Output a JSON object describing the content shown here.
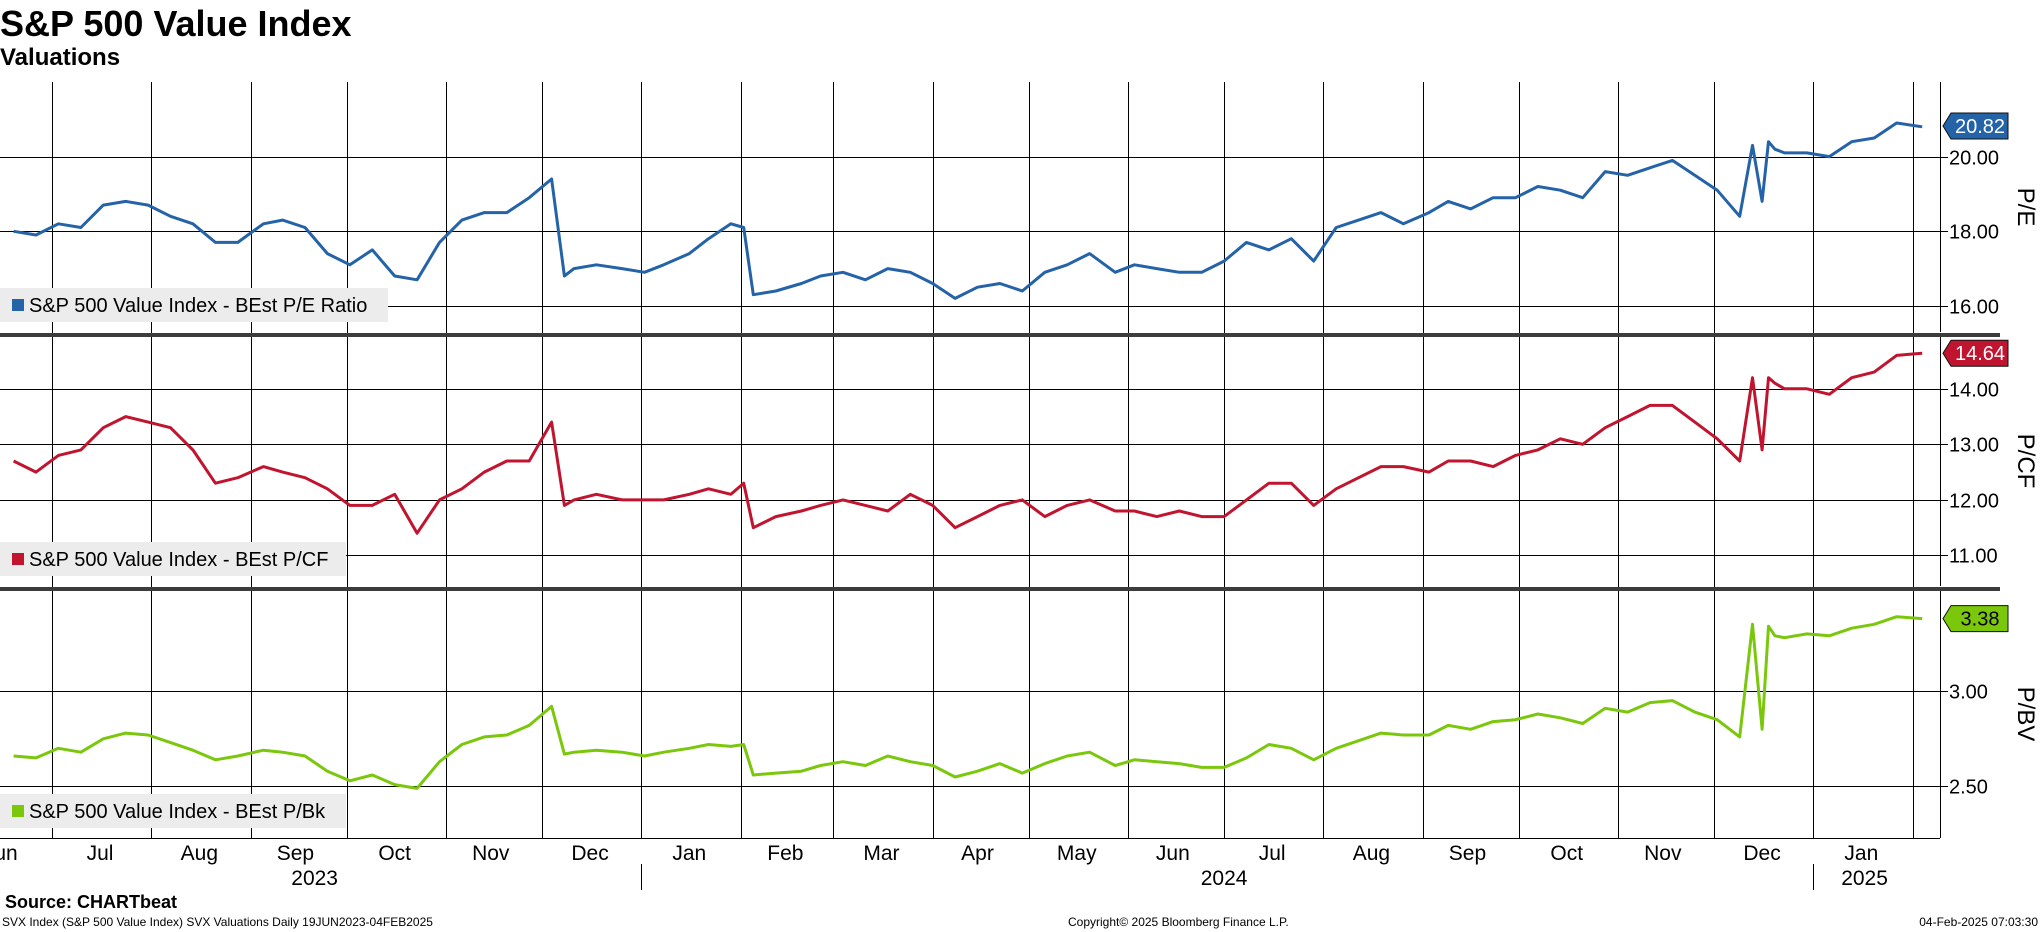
{
  "header": {
    "title": "S&P 500 Value Index",
    "subtitle": "Valuations"
  },
  "footer": {
    "source": "Source: CHARTbeat",
    "description": "SVX Index (S&P 500 Value Index) SVX Valuations  Daily 19JUN2023-04FEB2025",
    "copyright": "Copyright© 2025 Bloomberg Finance L.P.",
    "timestamp": "04-Feb-2025 07:03:30"
  },
  "colors": {
    "pe": "#2463a8",
    "pcf": "#c0142f",
    "pbv": "#7ac70c",
    "grid": "#000000",
    "panel_divider": "#3c3c3c"
  },
  "chart_data": [
    {
      "type": "line",
      "ylabel": "P/E",
      "ylim": [
        15.3,
        22.0
      ],
      "yticks": [
        "16.00",
        "18.00",
        "20.00"
      ],
      "last_value_label": "20.82",
      "legend": "S&P 500 Value Index - BEst P/E Ratio",
      "legend_position": "bottom-left",
      "series": [
        {
          "name": "S&P 500 Value Index - BEst P/E Ratio",
          "x": [
            "2023-06-19",
            "2023-06-26",
            "2023-07-03",
            "2023-07-10",
            "2023-07-17",
            "2023-07-24",
            "2023-07-31",
            "2023-08-07",
            "2023-08-14",
            "2023-08-21",
            "2023-08-28",
            "2023-09-05",
            "2023-09-11",
            "2023-09-18",
            "2023-09-25",
            "2023-10-02",
            "2023-10-09",
            "2023-10-16",
            "2023-10-23",
            "2023-10-30",
            "2023-11-06",
            "2023-11-13",
            "2023-11-20",
            "2023-11-27",
            "2023-12-04",
            "2023-12-08",
            "2023-12-11",
            "2023-12-18",
            "2023-12-26",
            "2024-01-02",
            "2024-01-08",
            "2024-01-16",
            "2024-01-22",
            "2024-01-29",
            "2024-02-02",
            "2024-02-05",
            "2024-02-12",
            "2024-02-20",
            "2024-02-26",
            "2024-03-04",
            "2024-03-11",
            "2024-03-18",
            "2024-03-25",
            "2024-04-01",
            "2024-04-08",
            "2024-04-15",
            "2024-04-22",
            "2024-04-29",
            "2024-05-06",
            "2024-05-13",
            "2024-05-20",
            "2024-05-28",
            "2024-06-03",
            "2024-06-10",
            "2024-06-17",
            "2024-06-24",
            "2024-07-01",
            "2024-07-08",
            "2024-07-15",
            "2024-07-22",
            "2024-07-29",
            "2024-08-05",
            "2024-08-12",
            "2024-08-19",
            "2024-08-26",
            "2024-09-03",
            "2024-09-09",
            "2024-09-16",
            "2024-09-23",
            "2024-09-30",
            "2024-10-07",
            "2024-10-14",
            "2024-10-21",
            "2024-10-28",
            "2024-11-04",
            "2024-11-11",
            "2024-11-18",
            "2024-11-25",
            "2024-12-02",
            "2024-12-09",
            "2024-12-13",
            "2024-12-16",
            "2024-12-18",
            "2024-12-20",
            "2024-12-23",
            "2024-12-30",
            "2025-01-06",
            "2025-01-13",
            "2025-01-20",
            "2025-01-27",
            "2025-02-04"
          ],
          "values": [
            18.0,
            17.9,
            18.2,
            18.1,
            18.7,
            18.8,
            18.7,
            18.4,
            18.2,
            17.7,
            17.7,
            18.2,
            18.3,
            18.1,
            17.4,
            17.1,
            17.5,
            16.8,
            16.7,
            17.7,
            18.3,
            18.5,
            18.5,
            18.9,
            19.4,
            16.8,
            17.0,
            17.1,
            17.0,
            16.9,
            17.1,
            17.4,
            17.8,
            18.2,
            18.1,
            16.3,
            16.4,
            16.6,
            16.8,
            16.9,
            16.7,
            17.0,
            16.9,
            16.6,
            16.2,
            16.5,
            16.6,
            16.4,
            16.9,
            17.1,
            17.4,
            16.9,
            17.1,
            17.0,
            16.9,
            16.9,
            17.2,
            17.7,
            17.5,
            17.8,
            17.2,
            18.1,
            18.3,
            18.5,
            18.2,
            18.5,
            18.8,
            18.6,
            18.9,
            18.9,
            19.2,
            19.1,
            18.9,
            19.6,
            19.5,
            19.7,
            19.9,
            19.5,
            19.1,
            18.4,
            20.3,
            18.8,
            20.4,
            20.2,
            20.1,
            20.1,
            20.0,
            20.4,
            20.5,
            20.9,
            20.8
          ]
        }
      ]
    },
    {
      "type": "line",
      "ylabel": "P/CF",
      "ylim": [
        10.45,
        14.95
      ],
      "yticks": [
        "11.00",
        "12.00",
        "13.00",
        "14.00"
      ],
      "last_value_label": "14.64",
      "legend": "S&P 500 Value Index - BEst P/CF",
      "legend_position": "bottom-left",
      "series": [
        {
          "name": "S&P 500 Value Index - BEst P/CF",
          "x": [
            "2023-06-19",
            "2023-06-26",
            "2023-07-03",
            "2023-07-10",
            "2023-07-17",
            "2023-07-24",
            "2023-07-31",
            "2023-08-07",
            "2023-08-14",
            "2023-08-21",
            "2023-08-28",
            "2023-09-05",
            "2023-09-11",
            "2023-09-18",
            "2023-09-25",
            "2023-10-02",
            "2023-10-09",
            "2023-10-16",
            "2023-10-23",
            "2023-10-30",
            "2023-11-06",
            "2023-11-13",
            "2023-11-20",
            "2023-11-27",
            "2023-12-04",
            "2023-12-08",
            "2023-12-11",
            "2023-12-18",
            "2023-12-26",
            "2024-01-02",
            "2024-01-08",
            "2024-01-16",
            "2024-01-22",
            "2024-01-29",
            "2024-02-02",
            "2024-02-05",
            "2024-02-12",
            "2024-02-20",
            "2024-02-26",
            "2024-03-04",
            "2024-03-11",
            "2024-03-18",
            "2024-03-25",
            "2024-04-01",
            "2024-04-08",
            "2024-04-15",
            "2024-04-22",
            "2024-04-29",
            "2024-05-06",
            "2024-05-13",
            "2024-05-20",
            "2024-05-28",
            "2024-06-03",
            "2024-06-10",
            "2024-06-17",
            "2024-06-24",
            "2024-07-01",
            "2024-07-08",
            "2024-07-15",
            "2024-07-22",
            "2024-07-29",
            "2024-08-05",
            "2024-08-12",
            "2024-08-19",
            "2024-08-26",
            "2024-09-03",
            "2024-09-09",
            "2024-09-16",
            "2024-09-23",
            "2024-09-30",
            "2024-10-07",
            "2024-10-14",
            "2024-10-21",
            "2024-10-28",
            "2024-11-04",
            "2024-11-11",
            "2024-11-18",
            "2024-11-25",
            "2024-12-02",
            "2024-12-09",
            "2024-12-13",
            "2024-12-16",
            "2024-12-18",
            "2024-12-20",
            "2024-12-23",
            "2024-12-30",
            "2025-01-06",
            "2025-01-13",
            "2025-01-20",
            "2025-01-27",
            "2025-02-04"
          ],
          "values": [
            12.7,
            12.5,
            12.8,
            12.9,
            13.3,
            13.5,
            13.4,
            13.3,
            12.9,
            12.3,
            12.4,
            12.6,
            12.5,
            12.4,
            12.2,
            11.9,
            11.9,
            12.1,
            11.4,
            12.0,
            12.2,
            12.5,
            12.7,
            12.7,
            13.4,
            11.9,
            12.0,
            12.1,
            12.0,
            12.0,
            12.0,
            12.1,
            12.2,
            12.1,
            12.3,
            11.5,
            11.7,
            11.8,
            11.9,
            12.0,
            11.9,
            11.8,
            12.1,
            11.9,
            11.5,
            11.7,
            11.9,
            12.0,
            11.7,
            11.9,
            12.0,
            11.8,
            11.8,
            11.7,
            11.8,
            11.7,
            11.7,
            12.0,
            12.3,
            12.3,
            11.9,
            12.2,
            12.4,
            12.6,
            12.6,
            12.5,
            12.7,
            12.7,
            12.6,
            12.8,
            12.9,
            13.1,
            13.0,
            13.3,
            13.5,
            13.7,
            13.7,
            13.4,
            13.1,
            12.7,
            14.2,
            12.9,
            14.2,
            14.1,
            14.0,
            14.0,
            13.9,
            14.2,
            14.3,
            14.6,
            14.64
          ]
        }
      ]
    },
    {
      "type": "line",
      "ylabel": "P/BV",
      "ylim": [
        2.23,
        3.53
      ],
      "yticks": [
        "2.50",
        "3.00"
      ],
      "last_value_label": "3.38",
      "legend": "S&P 500 Value Index - BEst P/Bk",
      "legend_position": "bottom-left",
      "series": [
        {
          "name": "S&P 500 Value Index - BEst P/Bk",
          "x": [
            "2023-06-19",
            "2023-06-26",
            "2023-07-03",
            "2023-07-10",
            "2023-07-17",
            "2023-07-24",
            "2023-07-31",
            "2023-08-07",
            "2023-08-14",
            "2023-08-21",
            "2023-08-28",
            "2023-09-05",
            "2023-09-11",
            "2023-09-18",
            "2023-09-25",
            "2023-10-02",
            "2023-10-09",
            "2023-10-16",
            "2023-10-23",
            "2023-10-30",
            "2023-11-06",
            "2023-11-13",
            "2023-11-20",
            "2023-11-27",
            "2023-12-04",
            "2023-12-08",
            "2023-12-11",
            "2023-12-18",
            "2023-12-26",
            "2024-01-02",
            "2024-01-08",
            "2024-01-16",
            "2024-01-22",
            "2024-01-29",
            "2024-02-02",
            "2024-02-05",
            "2024-02-12",
            "2024-02-20",
            "2024-02-26",
            "2024-03-04",
            "2024-03-11",
            "2024-03-18",
            "2024-03-25",
            "2024-04-01",
            "2024-04-08",
            "2024-04-15",
            "2024-04-22",
            "2024-04-29",
            "2024-05-06",
            "2024-05-13",
            "2024-05-20",
            "2024-05-28",
            "2024-06-03",
            "2024-06-10",
            "2024-06-17",
            "2024-06-24",
            "2024-07-01",
            "2024-07-08",
            "2024-07-15",
            "2024-07-22",
            "2024-07-29",
            "2024-08-05",
            "2024-08-12",
            "2024-08-19",
            "2024-08-26",
            "2024-09-03",
            "2024-09-09",
            "2024-09-16",
            "2024-09-23",
            "2024-09-30",
            "2024-10-07",
            "2024-10-14",
            "2024-10-21",
            "2024-10-28",
            "2024-11-04",
            "2024-11-11",
            "2024-11-18",
            "2024-11-25",
            "2024-12-02",
            "2024-12-09",
            "2024-12-13",
            "2024-12-16",
            "2024-12-18",
            "2024-12-20",
            "2024-12-23",
            "2024-12-30",
            "2025-01-06",
            "2025-01-13",
            "2025-01-20",
            "2025-01-27",
            "2025-02-04"
          ],
          "values": [
            2.66,
            2.65,
            2.7,
            2.68,
            2.75,
            2.78,
            2.77,
            2.73,
            2.69,
            2.64,
            2.66,
            2.69,
            2.68,
            2.66,
            2.58,
            2.53,
            2.56,
            2.51,
            2.49,
            2.63,
            2.72,
            2.76,
            2.77,
            2.82,
            2.92,
            2.67,
            2.68,
            2.69,
            2.68,
            2.66,
            2.68,
            2.7,
            2.72,
            2.71,
            2.72,
            2.56,
            2.57,
            2.58,
            2.61,
            2.63,
            2.61,
            2.66,
            2.63,
            2.61,
            2.55,
            2.58,
            2.62,
            2.57,
            2.62,
            2.66,
            2.68,
            2.61,
            2.64,
            2.63,
            2.62,
            2.6,
            2.6,
            2.65,
            2.72,
            2.7,
            2.64,
            2.7,
            2.74,
            2.78,
            2.77,
            2.77,
            2.82,
            2.8,
            2.84,
            2.85,
            2.88,
            2.86,
            2.83,
            2.91,
            2.89,
            2.94,
            2.95,
            2.89,
            2.85,
            2.76,
            3.35,
            2.8,
            3.34,
            3.29,
            3.28,
            3.3,
            3.29,
            3.33,
            3.35,
            3.39,
            3.38
          ]
        }
      ]
    }
  ],
  "x_axis": {
    "month_ticks": [
      {
        "label": "Jun",
        "date": "2023-06-15"
      },
      {
        "label": "Jul",
        "date": "2023-07-16"
      },
      {
        "label": "Aug",
        "date": "2023-08-16"
      },
      {
        "label": "Sep",
        "date": "2023-09-15"
      },
      {
        "label": "Oct",
        "date": "2023-10-16"
      },
      {
        "label": "Nov",
        "date": "2023-11-15"
      },
      {
        "label": "Dec",
        "date": "2023-12-16"
      },
      {
        "label": "Jan",
        "date": "2024-01-16"
      },
      {
        "label": "Feb",
        "date": "2024-02-15"
      },
      {
        "label": "Mar",
        "date": "2024-03-16"
      },
      {
        "label": "Apr",
        "date": "2024-04-15"
      },
      {
        "label": "May",
        "date": "2024-05-16"
      },
      {
        "label": "Jun",
        "date": "2024-06-15"
      },
      {
        "label": "Jul",
        "date": "2024-07-16"
      },
      {
        "label": "Aug",
        "date": "2024-08-16"
      },
      {
        "label": "Sep",
        "date": "2024-09-15"
      },
      {
        "label": "Oct",
        "date": "2024-10-16"
      },
      {
        "label": "Nov",
        "date": "2024-11-15"
      },
      {
        "label": "Dec",
        "date": "2024-12-16"
      },
      {
        "label": "Jan",
        "date": "2025-01-16"
      }
    ],
    "year_labels": [
      {
        "label": "2023",
        "date": "2023-09-21"
      },
      {
        "label": "2024",
        "date": "2024-07-01"
      },
      {
        "label": "2025",
        "date": "2025-01-17"
      }
    ]
  }
}
